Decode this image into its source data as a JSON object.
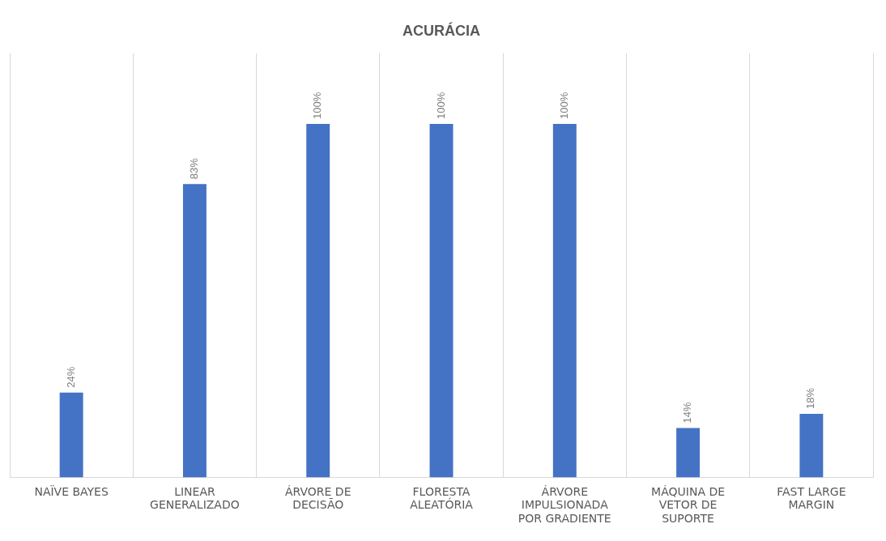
{
  "chart_data": {
    "type": "bar",
    "title": "ACURÁCIA",
    "categories": [
      "NAÏVE BAYES",
      "LINEAR GENERALIZADO",
      "ÁRVORE DE DECISÃO",
      "FLORESTA ALEATÓRIA",
      "ÁRVORE IMPULSIONADA POR GRADIENTE",
      "MÁQUINA DE VETOR DE SUPORTE",
      "FAST LARGE MARGIN"
    ],
    "values": [
      24,
      83,
      100,
      100,
      100,
      14,
      18
    ],
    "value_labels": [
      "24%",
      "83%",
      "100%",
      "100%",
      "100%",
      "14%",
      "18%"
    ],
    "color": "#4472c4",
    "ylim": [
      0,
      120
    ],
    "grid": "x",
    "legend": false,
    "tick_labels": "x"
  }
}
